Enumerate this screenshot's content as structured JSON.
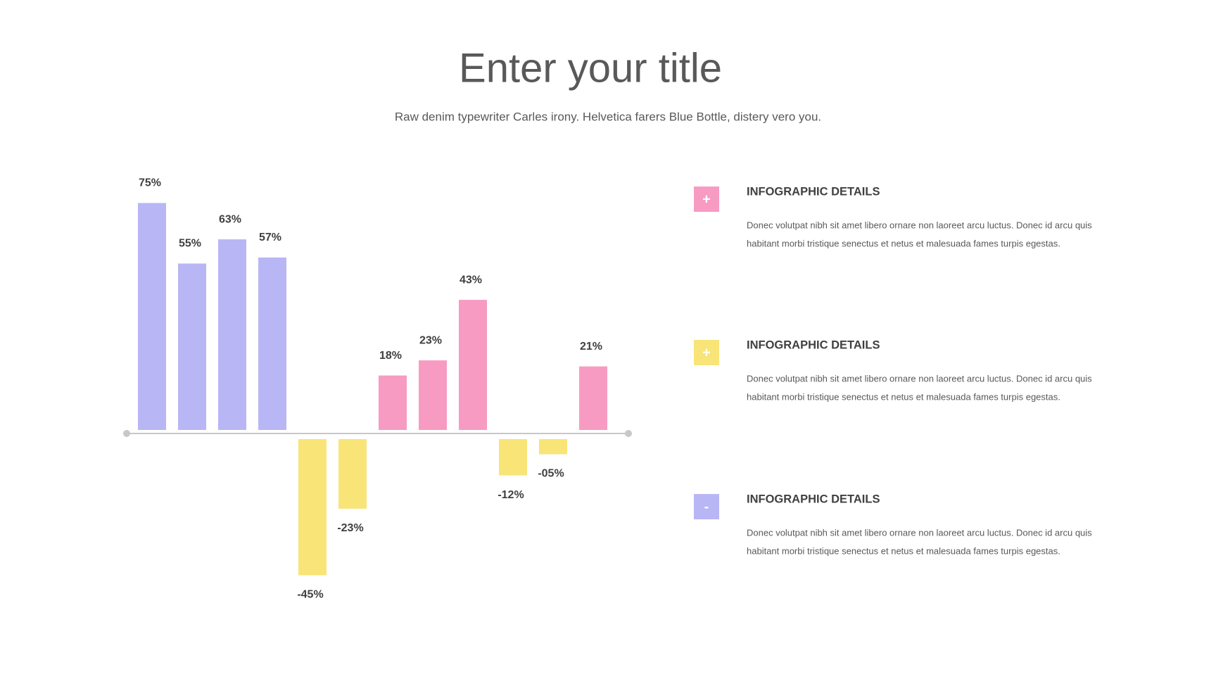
{
  "header": {
    "title": "Enter your title",
    "subtitle": "Raw denim typewriter Carles irony. Helvetica farers Blue Bottle, distery vero you."
  },
  "chart_data": {
    "type": "bar",
    "values": [
      75,
      55,
      63,
      57,
      -45,
      -23,
      18,
      23,
      43,
      -12,
      -5,
      21
    ],
    "value_labels": [
      "75%",
      "55%",
      "63%",
      "57%",
      "-45%",
      "-23%",
      "18%",
      "23%",
      "43%",
      "-12%",
      "-05%",
      "21%"
    ],
    "colors": [
      "#b9b6f5",
      "#b9b6f5",
      "#b9b6f5",
      "#b9b6f5",
      "#f9e478",
      "#f9e478",
      "#f79bc2",
      "#f79bc2",
      "#f79bc2",
      "#f9e478",
      "#f9e478",
      "#f79bc2"
    ]
  },
  "details": [
    {
      "icon": "+",
      "heading": "INFOGRAPHIC DETAILS",
      "lines": [
        "Donec volutpat nibh sit amet libero ornare non laoreet arcu luctus. Donec id arcu quis",
        "habitant morbi tristique senectus et netus et malesuada fames turpis egestas."
      ]
    },
    {
      "icon": "+",
      "heading": "INFOGRAPHIC DETAILS",
      "lines": [
        "Donec volutpat nibh sit amet libero ornare non laoreet arcu luctus. Donec id arcu quis",
        "habitant morbi tristique senectus et netus et malesuada fames turpis egestas."
      ]
    },
    {
      "icon": "-",
      "heading": "INFOGRAPHIC DETAILS",
      "lines": [
        "Donec volutpat nibh sit amet libero ornare non laoreet arcu luctus. Donec id arcu quis",
        "habitant morbi tristique senectus et netus et malesuada fames turpis egestas."
      ]
    }
  ]
}
